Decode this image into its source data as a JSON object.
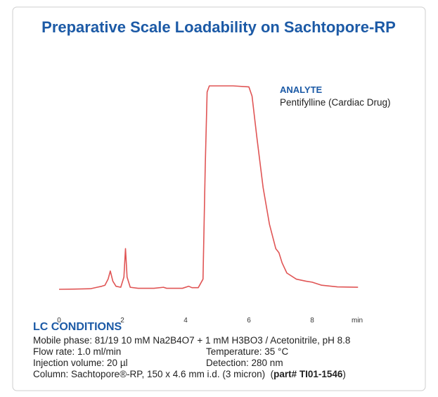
{
  "chart_data": {
    "type": "line",
    "title": "Preparative Scale Loadability on Sachtopore-RP",
    "annotation_title": "ANALYTE",
    "annotation_text": "Pentifylline (Cardiac Drug)",
    "x_label": "min",
    "x": [
      0,
      0.5,
      1.0,
      1.2,
      1.35,
      1.45,
      1.55,
      1.62,
      1.7,
      1.8,
      1.95,
      2.05,
      2.1,
      2.15,
      2.25,
      2.5,
      3.0,
      3.3,
      3.4,
      3.9,
      4.1,
      4.2,
      4.4,
      4.55,
      4.62,
      4.68,
      4.75,
      5.5,
      6.0,
      6.1,
      6.25,
      6.45,
      6.65,
      6.85,
      6.95,
      7.05,
      7.2,
      7.5,
      7.8,
      8.0,
      8.3,
      8.8,
      9.45
    ],
    "values": [
      0,
      0.1,
      0.3,
      1,
      1.5,
      2,
      5,
      9,
      4,
      1.5,
      1,
      6,
      20,
      6,
      1,
      0.5,
      0.5,
      1,
      0.5,
      0.5,
      1.5,
      0.8,
      0.8,
      5,
      60,
      97,
      100,
      100,
      99.5,
      95,
      75,
      50,
      32,
      20,
      18,
      13,
      8,
      5,
      4,
      3.5,
      2,
      1.2,
      1
    ],
    "color": "#e05555",
    "xlim": [
      0,
      9.45
    ],
    "xticks": [
      0,
      2,
      4,
      6,
      8
    ],
    "ylim": [
      0,
      100
    ]
  },
  "conditions": {
    "heading": "LC CONDITIONS",
    "mobile_phase": "Mobile phase: 81/19 10 mM Na2B4O7 + 1 mM H3BO3 / Acetonitrile, pH 8.8",
    "flow_rate": "Flow rate: 1.0 ml/min",
    "temperature": "Temperature: 35 °C",
    "injection_volume": "Injection volume: 20 µl",
    "detection": "Detection: 280 nm",
    "column": "Column: Sachtopore®-RP, 150 x 4.6 mm i.d. (3 micron)",
    "part_open": "(",
    "part_number": "part# TI01-1546",
    "part_close": ")"
  }
}
